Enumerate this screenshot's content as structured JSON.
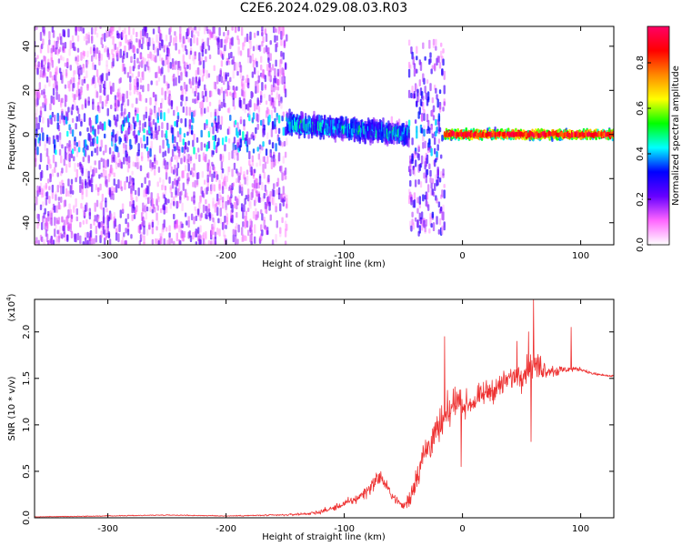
{
  "title": "C2E6.2024.029.08.03.R03",
  "chart_data": [
    {
      "type": "heatmap",
      "title": "C2E6.2024.029.08.03.R03",
      "xlabel": "Height of straight line (km)",
      "ylabel": "Frequency (Hz)",
      "xlim": [
        -362,
        128
      ],
      "ylim": [
        -50,
        49
      ],
      "x_ticks": [
        -300,
        -200,
        -100,
        0,
        100
      ],
      "y_ticks": [
        -40,
        -20,
        0,
        20,
        40
      ],
      "colorbar": {
        "label": "Normalized spectral amplitude",
        "range": [
          0.0,
          0.96
        ],
        "ticks": [
          0.0,
          0.2,
          0.4,
          0.6,
          0.8
        ],
        "tick_labels": [
          "0.0",
          "0.2",
          "0.4",
          "0.6",
          "0.8"
        ],
        "colors": [
          "#ffffff",
          "#ff66ff",
          "#6600ff",
          "#0000ff",
          "#00ffff",
          "#00ff00",
          "#ffff00",
          "#ff8800",
          "#ff0000",
          "#ff0066"
        ]
      },
      "regions": [
        {
          "x": [
            -362,
            -148
          ],
          "spread_hz": [
            -50,
            49
          ],
          "amplitude": 0.15,
          "note": "broadband scatter"
        },
        {
          "x": [
            -148,
            -45
          ],
          "center_hz": [
            5,
            0
          ],
          "spread_hz": 8,
          "amplitude": 0.4
        },
        {
          "x": [
            -45,
            -15
          ],
          "spread_hz": [
            -45,
            42
          ],
          "amplitude": 0.2
        },
        {
          "x": [
            -15,
            128
          ],
          "center_hz": 0,
          "spread_hz": 3,
          "amplitude": 0.85
        }
      ],
      "grid": false
    },
    {
      "type": "line",
      "xlabel": "Height of straight line (km)",
      "ylabel": "SNR (10 * v/v)",
      "multiplier_label": "(x10",
      "multiplier_exp": "4",
      "multiplier_close": ")",
      "xlim": [
        -362,
        128
      ],
      "ylim": [
        0,
        2.35
      ],
      "x_ticks": [
        -300,
        -200,
        -100,
        0,
        100
      ],
      "y_ticks": [
        0.0,
        0.5,
        1.0,
        1.5,
        2.0
      ],
      "y_tick_labels": [
        "0.0",
        "0.5",
        "1.0",
        "1.5",
        "2.0"
      ],
      "x_tick_labels": [
        "-300",
        "-200",
        "-100",
        "0",
        "100"
      ],
      "series": [
        {
          "color": "#ee3333",
          "x": [
            -362,
            -300,
            -250,
            -200,
            -150,
            -125,
            -110,
            -100,
            -90,
            -80,
            -70,
            -65,
            -60,
            -55,
            -50,
            -45,
            -40,
            -35,
            -30,
            -25,
            -20,
            -15,
            -10,
            -5,
            0,
            10,
            20,
            30,
            40,
            50,
            60,
            70,
            80,
            90,
            100,
            110,
            128
          ],
          "values": [
            0.01,
            0.02,
            0.03,
            0.02,
            0.03,
            0.05,
            0.1,
            0.15,
            0.2,
            0.3,
            0.45,
            0.35,
            0.25,
            0.18,
            0.12,
            0.2,
            0.4,
            0.6,
            0.75,
            0.85,
            0.95,
            1.05,
            1.15,
            1.3,
            1.2,
            1.25,
            1.35,
            1.4,
            1.5,
            1.55,
            1.65,
            1.6,
            1.58,
            1.6,
            1.6,
            1.55,
            1.52
          ],
          "noise": [
            0.005,
            0.01,
            0.01,
            0.01,
            0.02,
            0.04,
            0.06,
            0.08,
            0.1,
            0.14,
            0.18,
            0.12,
            0.1,
            0.08,
            0.08,
            0.2,
            0.3,
            0.35,
            0.35,
            0.35,
            0.4,
            0.4,
            0.35,
            0.3,
            0.25,
            0.25,
            0.25,
            0.25,
            0.25,
            0.28,
            0.3,
            0.2,
            0.12,
            0.06,
            0.04,
            0.03,
            0.03
          ],
          "spikes": [
            {
              "x": -15,
              "y": 1.95
            },
            {
              "x": -1,
              "y": 0.55
            },
            {
              "x": 46,
              "y": 1.9
            },
            {
              "x": 56,
              "y": 2.0
            },
            {
              "x": 60,
              "y": 2.35
            },
            {
              "x": 58,
              "y": 0.82
            },
            {
              "x": 92,
              "y": 2.05
            }
          ]
        }
      ],
      "grid": false
    }
  ]
}
